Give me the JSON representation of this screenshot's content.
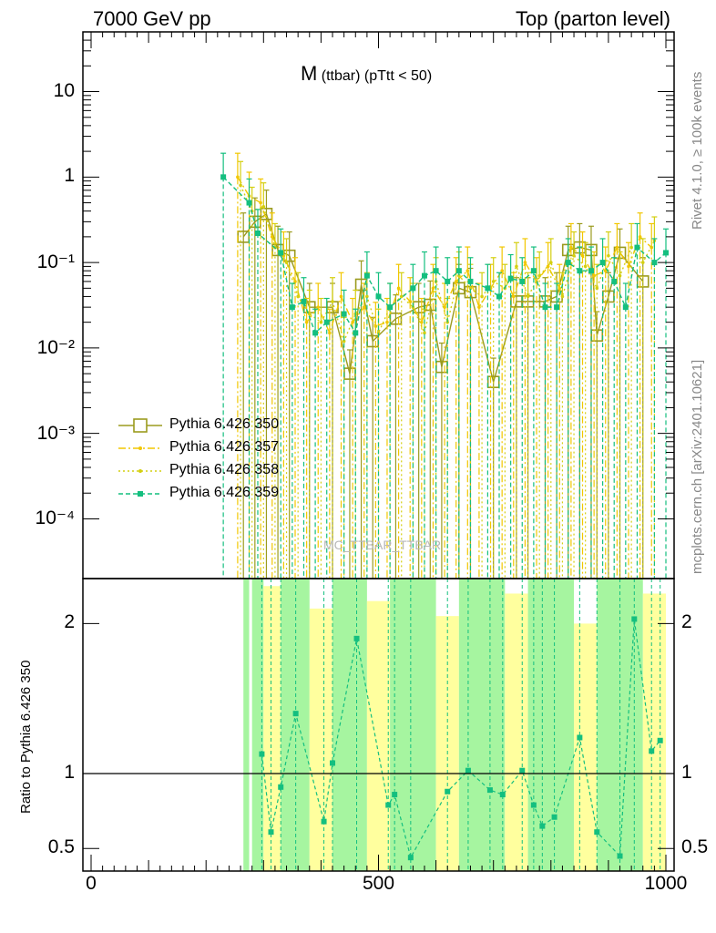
{
  "header": {
    "left": "7000 GeV pp",
    "right": "Top (parton level)"
  },
  "side_labels": {
    "right_upper": "Rivet 4.1.0, ≥ 100k events",
    "right_lower": "mcplots.cern.ch [arXiv:2401.10621]"
  },
  "chart_data": {
    "type": "line",
    "title_main": "M",
    "title_sub": "(ttbar) (pTtt < 50)",
    "watermark": "MC_TTBAR_TTBAR",
    "x_range": [
      0,
      1000
    ],
    "x_ticks": [
      "0",
      "500",
      "1000"
    ],
    "x_tick_values": [
      0,
      500,
      1000
    ],
    "upper": {
      "yscale": "log",
      "ylim": [
        2e-05,
        50
      ],
      "y_ticks": [
        {
          "label": "10",
          "value": 10
        },
        {
          "label": "1",
          "value": 1
        },
        {
          "label": "10⁻¹",
          "value": 0.1
        },
        {
          "label": "10⁻²",
          "value": 0.01
        },
        {
          "label": "10⁻³",
          "value": 0.001
        },
        {
          "label": "10⁻⁴",
          "value": 0.0001
        }
      ]
    },
    "ratio": {
      "ylabel": "Ratio to Pythia 6.426 350",
      "ylim": [
        0.35,
        2.3
      ],
      "y_ticks": [
        {
          "label": "2",
          "value": 2
        },
        {
          "label": "1",
          "value": 1
        },
        {
          "label": "0.5",
          "value": 0.5
        }
      ]
    },
    "series": [
      {
        "name": "Pythia 6.426 350",
        "color": "#9b9b1e",
        "style": "solid",
        "marker": "open-square",
        "points": [
          [
            265,
            0.2
          ],
          [
            285,
            0.3
          ],
          [
            305,
            0.37
          ],
          [
            325,
            0.14
          ],
          [
            345,
            0.12
          ],
          [
            380,
            0.03
          ],
          [
            420,
            0.03
          ],
          [
            450,
            0.005
          ],
          [
            470,
            0.055
          ],
          [
            490,
            0.012
          ],
          [
            530,
            0.022
          ],
          [
            570,
            0.03
          ],
          [
            590,
            0.032
          ],
          [
            610,
            0.006
          ],
          [
            640,
            0.05
          ],
          [
            660,
            0.045
          ],
          [
            700,
            0.004
          ],
          [
            740,
            0.035
          ],
          [
            760,
            0.035
          ],
          [
            790,
            0.035
          ],
          [
            810,
            0.04
          ],
          [
            830,
            0.14
          ],
          [
            850,
            0.15
          ],
          [
            870,
            0.14
          ],
          [
            880,
            0.014
          ],
          [
            900,
            0.04
          ],
          [
            920,
            0.13
          ],
          [
            960,
            0.06
          ]
        ]
      },
      {
        "name": "Pythia 6.426 357",
        "color": "#f2c700",
        "style": "dashdot",
        "marker": "star",
        "points": [
          [
            255,
            1.0
          ],
          [
            275,
            0.6
          ],
          [
            295,
            0.5
          ],
          [
            315,
            0.2
          ],
          [
            335,
            0.12
          ],
          [
            355,
            0.06
          ],
          [
            375,
            0.02
          ],
          [
            395,
            0.03
          ],
          [
            415,
            0.015
          ],
          [
            435,
            0.04
          ],
          [
            455,
            0.02
          ],
          [
            475,
            0.03
          ],
          [
            495,
            0.018
          ],
          [
            515,
            0.02
          ],
          [
            535,
            0.05
          ],
          [
            555,
            0.035
          ],
          [
            575,
            0.02
          ],
          [
            595,
            0.05
          ],
          [
            615,
            0.03
          ],
          [
            635,
            0.06
          ],
          [
            655,
            0.08
          ],
          [
            675,
            0.03
          ],
          [
            695,
            0.05
          ],
          [
            715,
            0.08
          ],
          [
            735,
            0.04
          ],
          [
            755,
            0.1
          ],
          [
            775,
            0.06
          ],
          [
            795,
            0.09
          ],
          [
            815,
            0.05
          ],
          [
            835,
            0.15
          ],
          [
            855,
            0.12
          ],
          [
            875,
            0.07
          ],
          [
            895,
            0.08
          ],
          [
            915,
            0.15
          ],
          [
            935,
            0.09
          ],
          [
            955,
            0.2
          ],
          [
            975,
            0.15
          ]
        ]
      },
      {
        "name": "Pythia 6.426 358",
        "color": "#d4cf10",
        "style": "dotted",
        "marker": "dot",
        "points": [
          [
            260,
            0.8
          ],
          [
            280,
            0.4
          ],
          [
            300,
            0.45
          ],
          [
            320,
            0.15
          ],
          [
            340,
            0.1
          ],
          [
            360,
            0.04
          ],
          [
            380,
            0.025
          ],
          [
            400,
            0.02
          ],
          [
            420,
            0.035
          ],
          [
            440,
            0.012
          ],
          [
            460,
            0.025
          ],
          [
            480,
            0.04
          ],
          [
            500,
            0.015
          ],
          [
            520,
            0.03
          ],
          [
            540,
            0.04
          ],
          [
            560,
            0.03
          ],
          [
            580,
            0.015
          ],
          [
            600,
            0.06
          ],
          [
            620,
            0.02
          ],
          [
            640,
            0.07
          ],
          [
            660,
            0.05
          ],
          [
            680,
            0.04
          ],
          [
            700,
            0.06
          ],
          [
            720,
            0.05
          ],
          [
            740,
            0.09
          ],
          [
            760,
            0.04
          ],
          [
            780,
            0.07
          ],
          [
            800,
            0.1
          ],
          [
            820,
            0.04
          ],
          [
            840,
            0.12
          ],
          [
            860,
            0.09
          ],
          [
            880,
            0.05
          ],
          [
            900,
            0.12
          ],
          [
            920,
            0.07
          ],
          [
            940,
            0.15
          ],
          [
            960,
            0.1
          ],
          [
            980,
            0.18
          ]
        ]
      },
      {
        "name": "Pythia 6.426 359",
        "color": "#14bf7f",
        "style": "dashed",
        "marker": "filled-square",
        "points": [
          [
            230,
            1.0
          ],
          [
            275,
            0.5
          ],
          [
            290,
            0.22
          ],
          [
            330,
            0.13
          ],
          [
            350,
            0.03
          ],
          [
            370,
            0.035
          ],
          [
            390,
            0.015
          ],
          [
            410,
            0.02
          ],
          [
            440,
            0.025
          ],
          [
            460,
            0.015
          ],
          [
            480,
            0.07
          ],
          [
            500,
            0.04
          ],
          [
            520,
            0.03
          ],
          [
            560,
            0.05
          ],
          [
            580,
            0.07
          ],
          [
            600,
            0.08
          ],
          [
            620,
            0.06
          ],
          [
            640,
            0.08
          ],
          [
            660,
            0.06
          ],
          [
            690,
            0.05
          ],
          [
            710,
            0.04
          ],
          [
            730,
            0.065
          ],
          [
            750,
            0.06
          ],
          [
            770,
            0.08
          ],
          [
            790,
            0.03
          ],
          [
            810,
            0.03
          ],
          [
            830,
            0.1
          ],
          [
            850,
            0.08
          ],
          [
            870,
            0.08
          ],
          [
            890,
            0.1
          ],
          [
            910,
            0.06
          ],
          [
            930,
            0.03
          ],
          [
            950,
            0.15
          ],
          [
            980,
            0.1
          ],
          [
            1000,
            0.13
          ]
        ]
      }
    ],
    "ratio_points": [
      {
        "x": 297,
        "y": 1.13
      },
      {
        "x": 313,
        "y": 0.61
      },
      {
        "x": 330,
        "y": 0.91
      },
      {
        "x": 356,
        "y": 1.4
      },
      {
        "x": 405,
        "y": 0.68
      },
      {
        "x": 420,
        "y": 1.07
      },
      {
        "x": 462,
        "y": 1.9
      },
      {
        "x": 517,
        "y": 0.79
      },
      {
        "x": 528,
        "y": 0.86
      },
      {
        "x": 556,
        "y": 0.44
      },
      {
        "x": 620,
        "y": 0.88
      },
      {
        "x": 656,
        "y": 1.02
      },
      {
        "x": 694,
        "y": 0.89
      },
      {
        "x": 716,
        "y": 0.86
      },
      {
        "x": 750,
        "y": 1.02
      },
      {
        "x": 770,
        "y": 0.79
      },
      {
        "x": 785,
        "y": 0.65
      },
      {
        "x": 806,
        "y": 0.71
      },
      {
        "x": 850,
        "y": 1.24
      },
      {
        "x": 880,
        "y": 0.61
      },
      {
        "x": 920,
        "y": 0.45
      },
      {
        "x": 945,
        "y": 2.03
      },
      {
        "x": 975,
        "y": 1.15
      },
      {
        "x": 990,
        "y": 1.22
      }
    ],
    "ratio_bands": [
      {
        "x0": 265,
        "x1": 275,
        "lo": 0.35,
        "hi": 2.3,
        "color": "#a6f5a0"
      },
      {
        "x0": 280,
        "x1": 300,
        "lo": 0.35,
        "hi": 2.3,
        "color": "#a6f5a0"
      },
      {
        "x0": 300,
        "x1": 330,
        "lo": 0.35,
        "hi": 2.25,
        "color": "#ffff9e"
      },
      {
        "x0": 330,
        "x1": 380,
        "lo": 0.35,
        "hi": 2.3,
        "color": "#a6f5a0"
      },
      {
        "x0": 380,
        "x1": 420,
        "lo": 0.35,
        "hi": 2.1,
        "color": "#ffff9e"
      },
      {
        "x0": 420,
        "x1": 480,
        "lo": 0.35,
        "hi": 2.3,
        "color": "#a6f5a0"
      },
      {
        "x0": 480,
        "x1": 520,
        "lo": 0.35,
        "hi": 2.15,
        "color": "#ffff9e"
      },
      {
        "x0": 520,
        "x1": 600,
        "lo": 0.35,
        "hi": 2.3,
        "color": "#a6f5a0"
      },
      {
        "x0": 600,
        "x1": 640,
        "lo": 0.35,
        "hi": 2.05,
        "color": "#ffff9e"
      },
      {
        "x0": 640,
        "x1": 720,
        "lo": 0.35,
        "hi": 2.3,
        "color": "#a6f5a0"
      },
      {
        "x0": 720,
        "x1": 760,
        "lo": 0.35,
        "hi": 2.2,
        "color": "#ffff9e"
      },
      {
        "x0": 760,
        "x1": 840,
        "lo": 0.35,
        "hi": 2.3,
        "color": "#a6f5a0"
      },
      {
        "x0": 840,
        "x1": 880,
        "lo": 0.35,
        "hi": 2.0,
        "color": "#ffff9e"
      },
      {
        "x0": 880,
        "x1": 960,
        "lo": 0.35,
        "hi": 2.3,
        "color": "#a6f5a0"
      },
      {
        "x0": 960,
        "x1": 1000,
        "lo": 0.35,
        "hi": 2.2,
        "color": "#ffff9e"
      }
    ]
  }
}
